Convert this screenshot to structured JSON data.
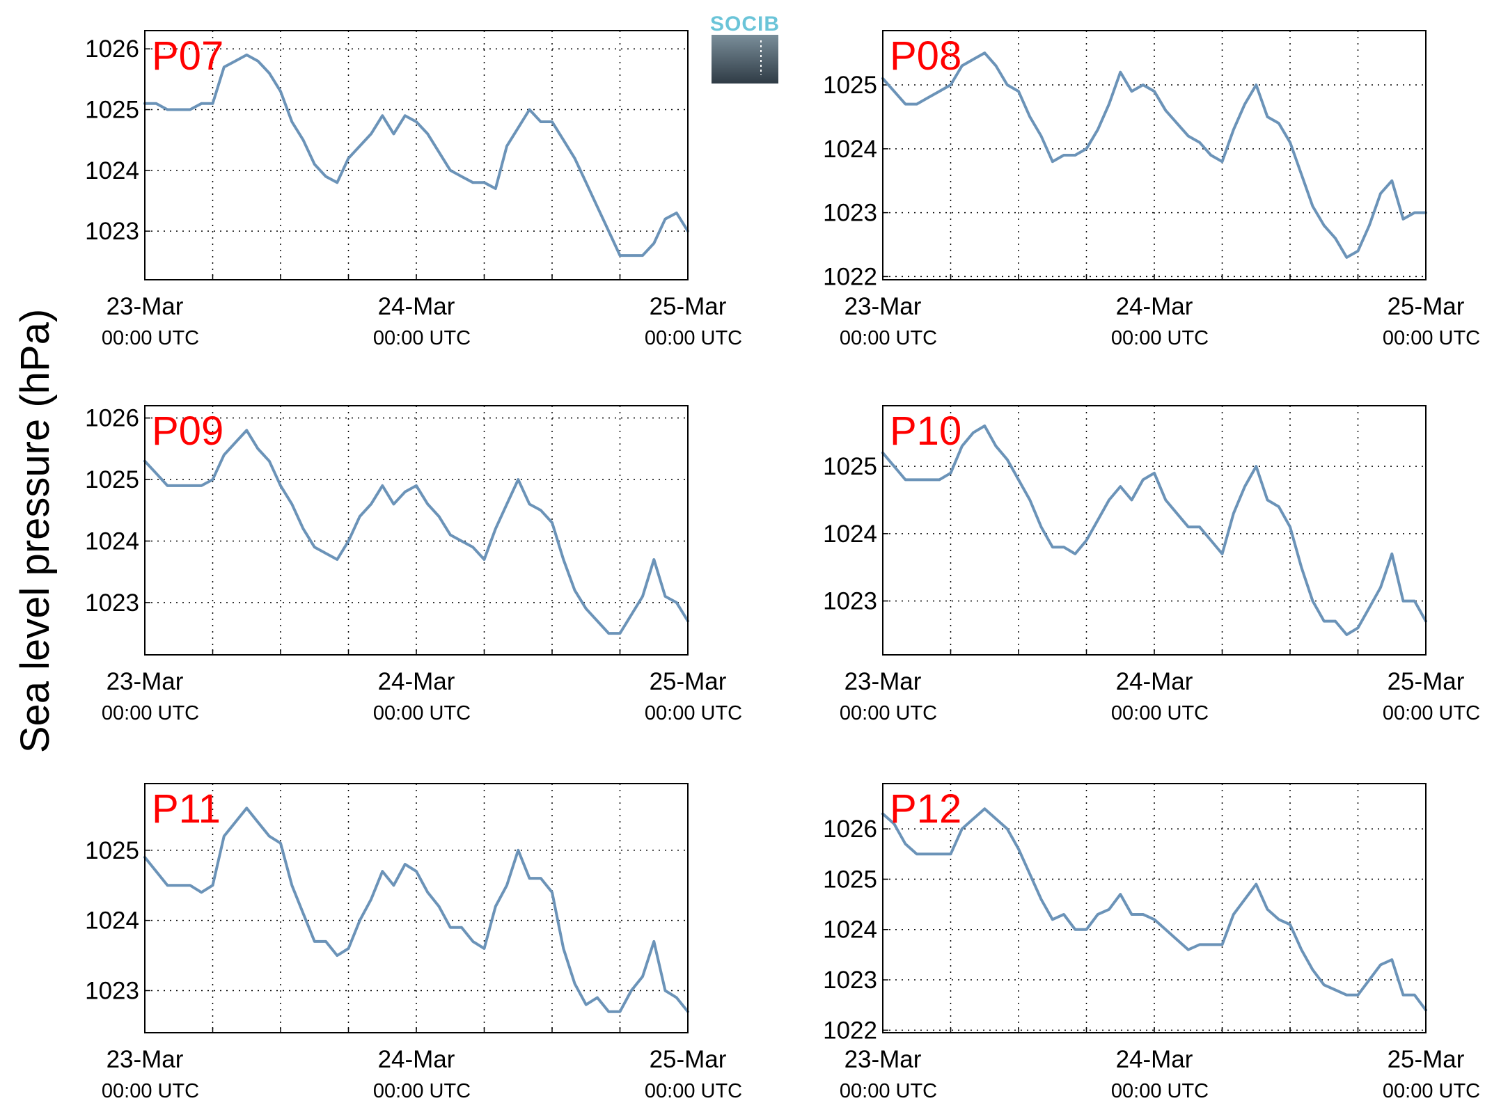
{
  "figure": {
    "ylabel": "Sea level pressure (hPa)",
    "logo": {
      "text": "SOCIB",
      "color": "#6ac4d8"
    },
    "line_color": "#6b93b8",
    "label_color": "#ff0000"
  },
  "chart_data": [
    {
      "type": "line",
      "title": "P07",
      "xlim": [
        0,
        48
      ],
      "ylim": [
        1022.2,
        1026.3
      ],
      "yticks": [
        1023,
        1024,
        1025,
        1026
      ],
      "xticks": [
        {
          "x": 0,
          "l1": "23-Mar",
          "l2": "00:00 UTC"
        },
        {
          "x": 24,
          "l1": "24-Mar",
          "l2": "00:00 UTC"
        },
        {
          "x": 48,
          "l1": "25-Mar",
          "l2": "00:00 UTC"
        }
      ],
      "grid": true,
      "series": [
        {
          "x": [
            0,
            1,
            2,
            3,
            4,
            5,
            6,
            7,
            8,
            9,
            10,
            11,
            12,
            13,
            14,
            15,
            16,
            17,
            18,
            19,
            20,
            21,
            22,
            23,
            24,
            25,
            26,
            27,
            28,
            29,
            30,
            31,
            32,
            33,
            34,
            35,
            36,
            37,
            38,
            39,
            40,
            41,
            42,
            43,
            44,
            45,
            46,
            47,
            48
          ],
          "y": [
            1025.1,
            1025.1,
            1025.0,
            1025.0,
            1025.0,
            1025.1,
            1025.1,
            1025.7,
            1025.8,
            1025.9,
            1025.8,
            1025.6,
            1025.3,
            1024.8,
            1024.5,
            1024.1,
            1023.9,
            1023.8,
            1024.2,
            1024.4,
            1024.6,
            1024.9,
            1024.6,
            1024.9,
            1024.8,
            1024.6,
            1024.3,
            1024.0,
            1023.9,
            1023.8,
            1023.8,
            1023.7,
            1024.4,
            1024.7,
            1025.0,
            1024.8,
            1024.8,
            1024.5,
            1024.2,
            1023.8,
            1023.4,
            1023.0,
            1022.6,
            1022.6,
            1022.6,
            1022.8,
            1023.2,
            1023.3,
            1023.0
          ]
        }
      ]
    },
    {
      "type": "line",
      "title": "P08",
      "xlim": [
        0,
        48
      ],
      "ylim": [
        1021.95,
        1025.85
      ],
      "yticks": [
        1022,
        1023,
        1024,
        1025
      ],
      "xticks": [
        {
          "x": 0,
          "l1": "23-Mar",
          "l2": "00:00 UTC"
        },
        {
          "x": 24,
          "l1": "24-Mar",
          "l2": "00:00 UTC"
        },
        {
          "x": 48,
          "l1": "25-Mar",
          "l2": "00:00 UTC"
        }
      ],
      "grid": true,
      "series": [
        {
          "x": [
            0,
            1,
            2,
            3,
            4,
            5,
            6,
            7,
            8,
            9,
            10,
            11,
            12,
            13,
            14,
            15,
            16,
            17,
            18,
            19,
            20,
            21,
            22,
            23,
            24,
            25,
            26,
            27,
            28,
            29,
            30,
            31,
            32,
            33,
            34,
            35,
            36,
            37,
            38,
            39,
            40,
            41,
            42,
            43,
            44,
            45,
            46,
            47,
            48
          ],
          "y": [
            1025.1,
            1024.9,
            1024.7,
            1024.7,
            1024.8,
            1024.9,
            1025.0,
            1025.3,
            1025.4,
            1025.5,
            1025.3,
            1025.0,
            1024.9,
            1024.5,
            1024.2,
            1023.8,
            1023.9,
            1023.9,
            1024.0,
            1024.3,
            1024.7,
            1025.2,
            1024.9,
            1025.0,
            1024.9,
            1024.6,
            1024.4,
            1024.2,
            1024.1,
            1023.9,
            1023.8,
            1024.3,
            1024.7,
            1025.0,
            1024.5,
            1024.4,
            1024.1,
            1023.6,
            1023.1,
            1022.8,
            1022.6,
            1022.3,
            1022.4,
            1022.8,
            1023.3,
            1023.5,
            1022.9,
            1023.0,
            1023.0
          ]
        }
      ]
    },
    {
      "type": "line",
      "title": "P09",
      "xlim": [
        0,
        48
      ],
      "ylim": [
        1022.15,
        1026.2
      ],
      "yticks": [
        1023,
        1024,
        1025,
        1026
      ],
      "xticks": [
        {
          "x": 0,
          "l1": "23-Mar",
          "l2": "00:00 UTC"
        },
        {
          "x": 24,
          "l1": "24-Mar",
          "l2": "00:00 UTC"
        },
        {
          "x": 48,
          "l1": "25-Mar",
          "l2": "00:00 UTC"
        }
      ],
      "grid": true,
      "series": [
        {
          "x": [
            0,
            1,
            2,
            3,
            4,
            5,
            6,
            7,
            8,
            9,
            10,
            11,
            12,
            13,
            14,
            15,
            16,
            17,
            18,
            19,
            20,
            21,
            22,
            23,
            24,
            25,
            26,
            27,
            28,
            29,
            30,
            31,
            32,
            33,
            34,
            35,
            36,
            37,
            38,
            39,
            40,
            41,
            42,
            43,
            44,
            45,
            46,
            47,
            48
          ],
          "y": [
            1025.3,
            1025.1,
            1024.9,
            1024.9,
            1024.9,
            1024.9,
            1025.0,
            1025.4,
            1025.6,
            1025.8,
            1025.5,
            1025.3,
            1024.9,
            1024.6,
            1024.2,
            1023.9,
            1023.8,
            1023.7,
            1024.0,
            1024.4,
            1024.6,
            1024.9,
            1024.6,
            1024.8,
            1024.9,
            1024.6,
            1024.4,
            1024.1,
            1024.0,
            1023.9,
            1023.7,
            1024.2,
            1024.6,
            1025.0,
            1024.6,
            1024.5,
            1024.3,
            1023.7,
            1023.2,
            1022.9,
            1022.7,
            1022.5,
            1022.5,
            1022.8,
            1023.1,
            1023.7,
            1023.1,
            1023.0,
            1022.7
          ]
        }
      ]
    },
    {
      "type": "line",
      "title": "P10",
      "xlim": [
        0,
        48
      ],
      "ylim": [
        1022.2,
        1025.9
      ],
      "yticks": [
        1023,
        1024,
        1025
      ],
      "xticks": [
        {
          "x": 0,
          "l1": "23-Mar",
          "l2": "00:00 UTC"
        },
        {
          "x": 24,
          "l1": "24-Mar",
          "l2": "00:00 UTC"
        },
        {
          "x": 48,
          "l1": "25-Mar",
          "l2": "00:00 UTC"
        }
      ],
      "grid": true,
      "series": [
        {
          "x": [
            0,
            1,
            2,
            3,
            4,
            5,
            6,
            7,
            8,
            9,
            10,
            11,
            12,
            13,
            14,
            15,
            16,
            17,
            18,
            19,
            20,
            21,
            22,
            23,
            24,
            25,
            26,
            27,
            28,
            29,
            30,
            31,
            32,
            33,
            34,
            35,
            36,
            37,
            38,
            39,
            40,
            41,
            42,
            43,
            44,
            45,
            46,
            47,
            48
          ],
          "y": [
            1025.2,
            1025.0,
            1024.8,
            1024.8,
            1024.8,
            1024.8,
            1024.9,
            1025.3,
            1025.5,
            1025.6,
            1025.3,
            1025.1,
            1024.8,
            1024.5,
            1024.1,
            1023.8,
            1023.8,
            1023.7,
            1023.9,
            1024.2,
            1024.5,
            1024.7,
            1024.5,
            1024.8,
            1024.9,
            1024.5,
            1024.3,
            1024.1,
            1024.1,
            1023.9,
            1023.7,
            1024.3,
            1024.7,
            1025.0,
            1024.5,
            1024.4,
            1024.1,
            1023.5,
            1023.0,
            1022.7,
            1022.7,
            1022.5,
            1022.6,
            1022.9,
            1023.2,
            1023.7,
            1023.0,
            1023.0,
            1022.7
          ]
        }
      ]
    },
    {
      "type": "line",
      "title": "P11",
      "xlim": [
        0,
        48
      ],
      "ylim": [
        1022.4,
        1025.95
      ],
      "yticks": [
        1023,
        1024,
        1025
      ],
      "xticks": [
        {
          "x": 0,
          "l1": "23-Mar",
          "l2": "00:00 UTC"
        },
        {
          "x": 24,
          "l1": "24-Mar",
          "l2": "00:00 UTC"
        },
        {
          "x": 48,
          "l1": "25-Mar",
          "l2": "00:00 UTC"
        }
      ],
      "grid": true,
      "series": [
        {
          "x": [
            0,
            1,
            2,
            3,
            4,
            5,
            6,
            7,
            8,
            9,
            10,
            11,
            12,
            13,
            14,
            15,
            16,
            17,
            18,
            19,
            20,
            21,
            22,
            23,
            24,
            25,
            26,
            27,
            28,
            29,
            30,
            31,
            32,
            33,
            34,
            35,
            36,
            37,
            38,
            39,
            40,
            41,
            42,
            43,
            44,
            45,
            46,
            47,
            48
          ],
          "y": [
            1024.9,
            1024.7,
            1024.5,
            1024.5,
            1024.5,
            1024.4,
            1024.5,
            1025.2,
            1025.4,
            1025.6,
            1025.4,
            1025.2,
            1025.1,
            1024.5,
            1024.1,
            1023.7,
            1023.7,
            1023.5,
            1023.6,
            1024.0,
            1024.3,
            1024.7,
            1024.5,
            1024.8,
            1024.7,
            1024.4,
            1024.2,
            1023.9,
            1023.9,
            1023.7,
            1023.6,
            1024.2,
            1024.5,
            1025.0,
            1024.6,
            1024.6,
            1024.4,
            1023.6,
            1023.1,
            1022.8,
            1022.9,
            1022.7,
            1022.7,
            1023.0,
            1023.2,
            1023.7,
            1023.0,
            1022.9,
            1022.7
          ]
        }
      ]
    },
    {
      "type": "line",
      "title": "P12",
      "xlim": [
        0,
        48
      ],
      "ylim": [
        1021.95,
        1026.9
      ],
      "yticks": [
        1022,
        1023,
        1024,
        1025,
        1026
      ],
      "xticks": [
        {
          "x": 0,
          "l1": "23-Mar",
          "l2": "00:00 UTC"
        },
        {
          "x": 24,
          "l1": "24-Mar",
          "l2": "00:00 UTC"
        },
        {
          "x": 48,
          "l1": "25-Mar",
          "l2": "00:00 UTC"
        }
      ],
      "grid": true,
      "series": [
        {
          "x": [
            0,
            1,
            2,
            3,
            4,
            5,
            6,
            7,
            8,
            9,
            10,
            11,
            12,
            13,
            14,
            15,
            16,
            17,
            18,
            19,
            20,
            21,
            22,
            23,
            24,
            25,
            26,
            27,
            28,
            29,
            30,
            31,
            32,
            33,
            34,
            35,
            36,
            37,
            38,
            39,
            40,
            41,
            42,
            43,
            44,
            45,
            46,
            47,
            48
          ],
          "y": [
            1026.3,
            1026.1,
            1025.7,
            1025.5,
            1025.5,
            1025.5,
            1025.5,
            1026.0,
            1026.2,
            1026.4,
            1026.2,
            1026.0,
            1025.6,
            1025.1,
            1024.6,
            1024.2,
            1024.3,
            1024.0,
            1024.0,
            1024.3,
            1024.4,
            1024.7,
            1024.3,
            1024.3,
            1024.2,
            1024.0,
            1023.8,
            1023.6,
            1023.7,
            1023.7,
            1023.7,
            1024.3,
            1024.6,
            1024.9,
            1024.4,
            1024.2,
            1024.1,
            1023.6,
            1023.2,
            1022.9,
            1022.8,
            1022.7,
            1022.7,
            1023.0,
            1023.3,
            1023.4,
            1022.7,
            1022.7,
            1022.4
          ]
        }
      ]
    }
  ]
}
